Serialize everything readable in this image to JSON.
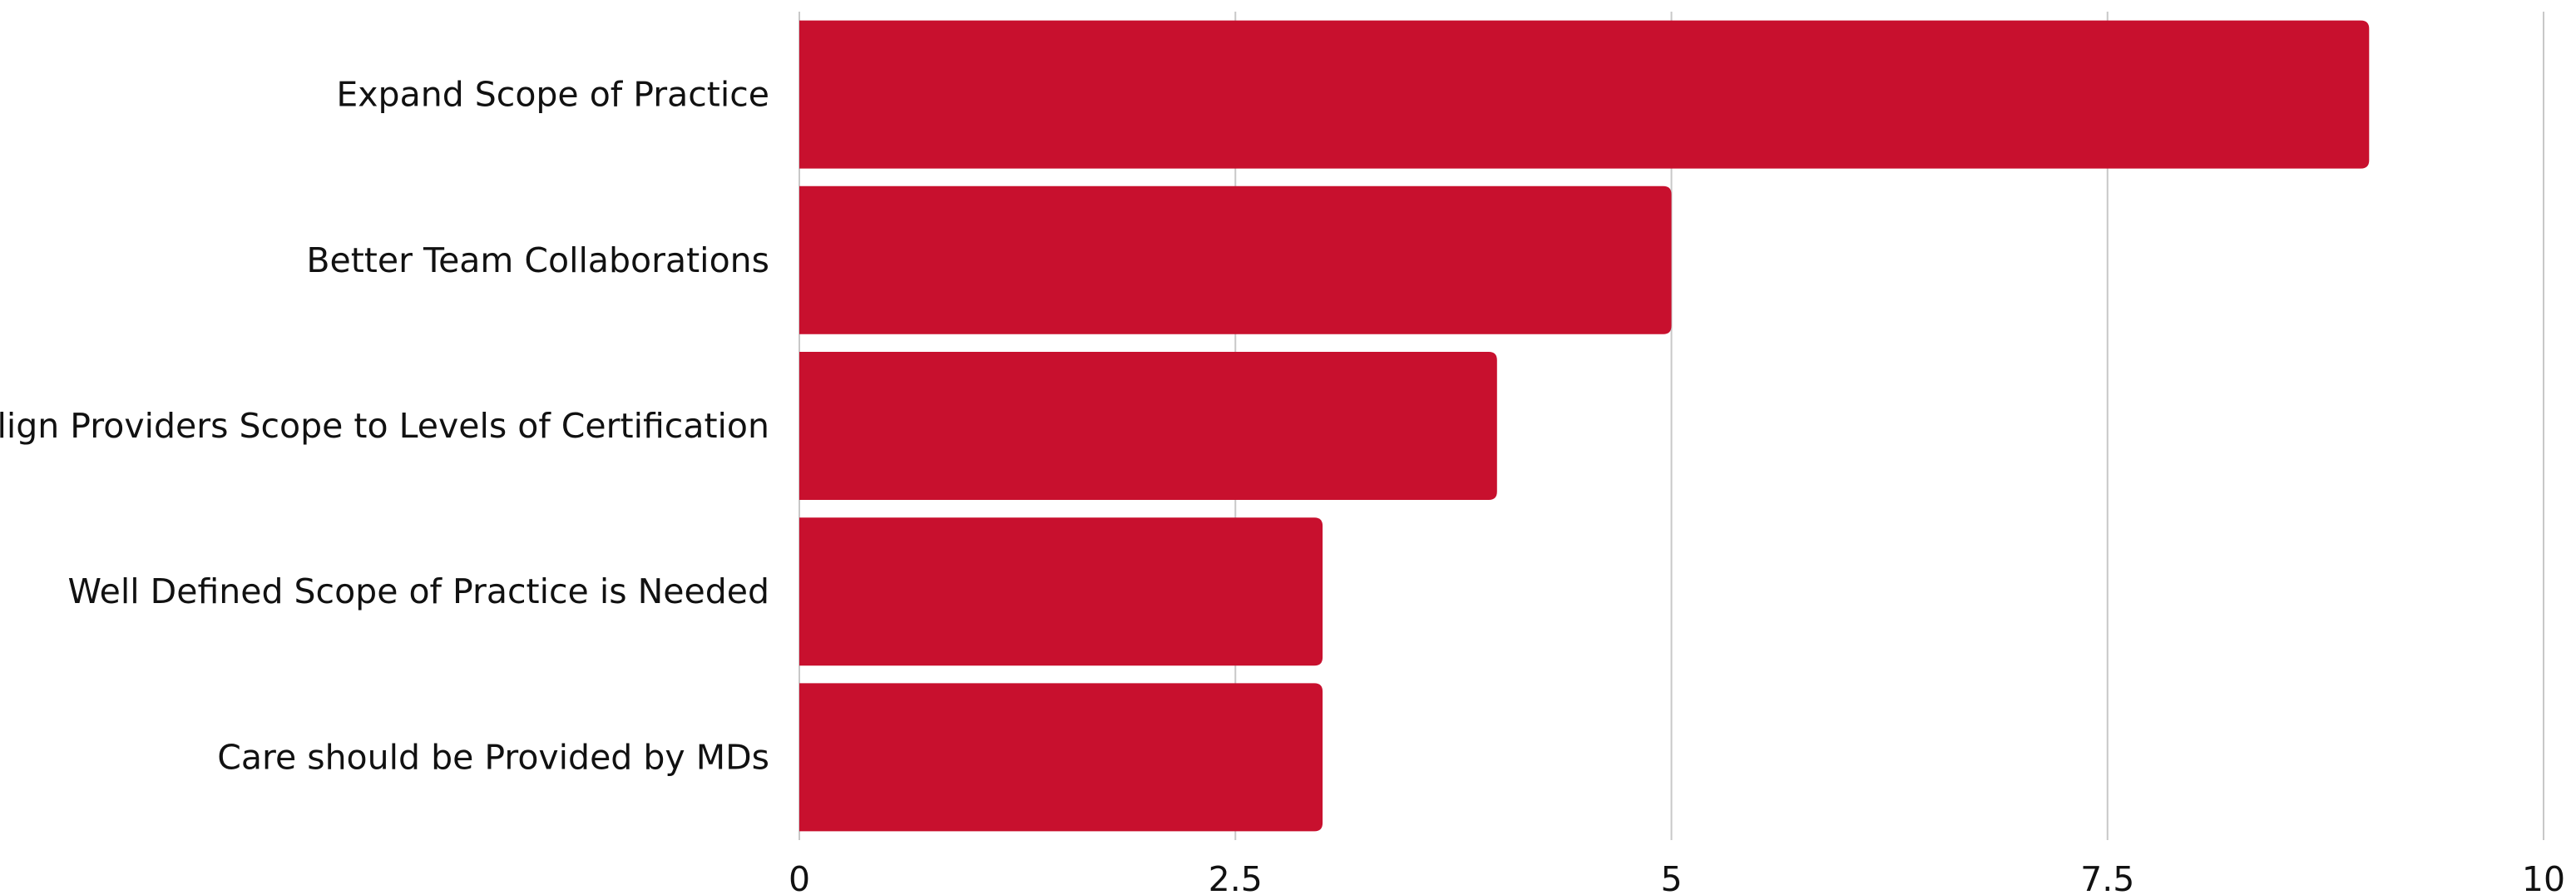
{
  "chart_data": {
    "type": "bar",
    "orientation": "horizontal",
    "title": "",
    "xlabel": "",
    "ylabel": "",
    "categories": [
      "Expand Scope of Practice",
      "Better Team Collaborations",
      "Align Providers Scope to Levels of Certification",
      "Well Defined Scope of Practice is Needed",
      "Care should be Provided by MDs"
    ],
    "values": [
      9,
      5,
      4,
      3,
      3
    ],
    "xlim": [
      0,
      10
    ],
    "xticks": [
      0,
      2.5,
      5,
      7.5,
      10
    ],
    "xtick_labels": [
      "0",
      "2.5",
      "5",
      "7.5",
      "10"
    ],
    "grid": true,
    "legend": "none",
    "bar_color": "#c8102e",
    "grid_color": "#c8c8c8",
    "text_color": "#111111"
  }
}
